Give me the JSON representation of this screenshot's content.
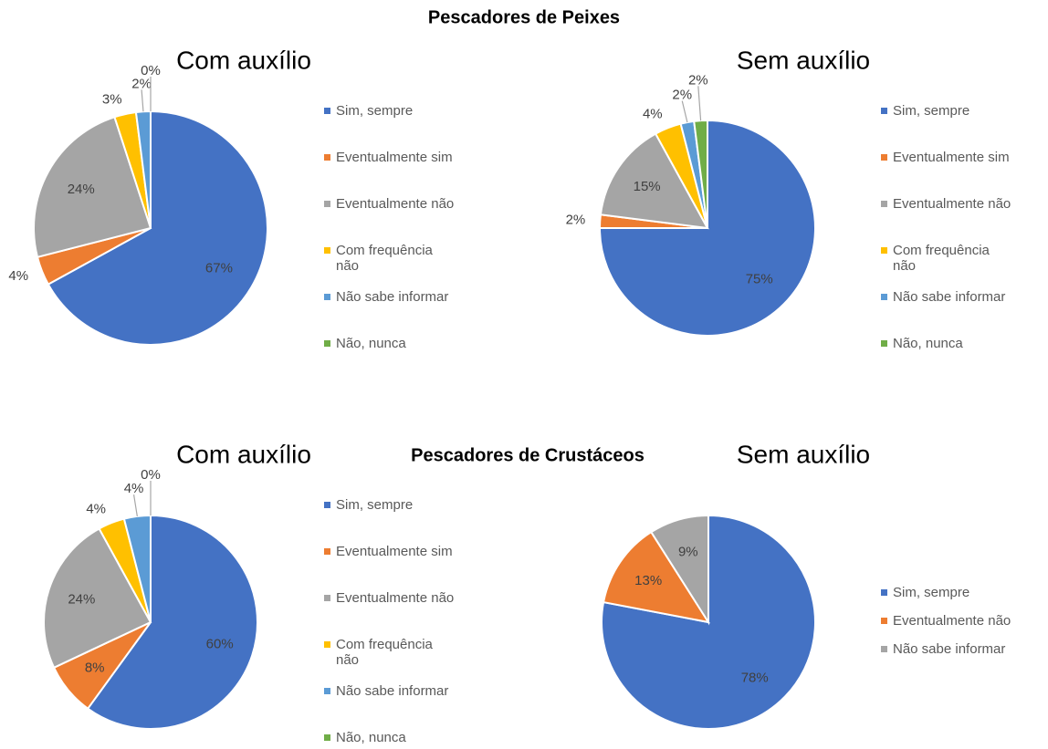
{
  "headings": [
    "Pescadores de Peixes",
    "Pescadores de Crustáceos"
  ],
  "chart_data": [
    {
      "type": "pie",
      "title": "Com auxílio",
      "categories": [
        "Sim, sempre",
        "Eventualmente sim",
        "Eventualmente não",
        "Com frequência não",
        "Não sabe informar",
        "Não, nunca"
      ],
      "values": [
        67,
        4,
        24,
        3,
        2,
        0
      ],
      "value_labels": [
        "67%",
        "4%",
        "24%",
        "3%",
        "2%",
        "0%"
      ],
      "colors": [
        "#4472c4",
        "#ed7d31",
        "#a5a5a5",
        "#ffc000",
        "#5b9bd5",
        "#70ad47"
      ]
    },
    {
      "type": "pie",
      "title": "Sem auxílio",
      "categories": [
        "Sim, sempre",
        "Eventualmente sim",
        "Eventualmente não",
        "Com frequência não",
        "Não sabe informar",
        "Não, nunca"
      ],
      "values": [
        75,
        2,
        15,
        4,
        2,
        2
      ],
      "value_labels": [
        "75%",
        "2%",
        "15%",
        "4%",
        "2%",
        "2%"
      ],
      "colors": [
        "#4472c4",
        "#ed7d31",
        "#a5a5a5",
        "#ffc000",
        "#5b9bd5",
        "#70ad47"
      ]
    },
    {
      "type": "pie",
      "title": "Com auxílio",
      "categories": [
        "Sim, sempre",
        "Eventualmente sim",
        "Eventualmente não",
        "Com frequência não",
        "Não sabe informar",
        "Não, nunca"
      ],
      "values": [
        60,
        8,
        24,
        4,
        4,
        0
      ],
      "value_labels": [
        "60%",
        "8%",
        "24%",
        "4%",
        "4%",
        "0%"
      ],
      "colors": [
        "#4472c4",
        "#ed7d31",
        "#a5a5a5",
        "#ffc000",
        "#5b9bd5",
        "#70ad47"
      ]
    },
    {
      "type": "pie",
      "title": "Sem auxílio",
      "categories": [
        "Sim, sempre",
        "Eventualmente não",
        "Não sabe informar"
      ],
      "values": [
        78,
        13,
        9
      ],
      "value_labels": [
        "78%",
        "13%",
        "9%"
      ],
      "colors": [
        "#4472c4",
        "#ed7d31",
        "#a5a5a5"
      ]
    }
  ]
}
